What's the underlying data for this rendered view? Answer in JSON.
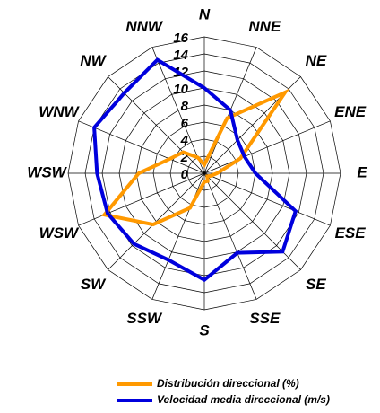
{
  "chart_data": {
    "type": "radar",
    "categories": [
      "N",
      "NNE",
      "NE",
      "ENE",
      "E",
      "ESE",
      "SE",
      "SSE",
      "S",
      "SSW",
      "SW",
      "WSW",
      "WSW",
      "WNW",
      "NW",
      "NNW"
    ],
    "series": [
      {
        "name": "Distribución direccional (%)",
        "color": "#ff9900",
        "values": [
          1,
          7,
          13.4,
          4.6,
          1.5,
          0.8,
          0.5,
          1,
          1,
          4.4,
          8.5,
          12.7,
          7.7,
          4.4,
          3.5,
          2
        ]
      },
      {
        "name": "Velocidad media direccional (m/s)",
        "color": "#0000dd",
        "values": [
          10,
          8,
          5.5,
          5.1,
          6,
          11.6,
          13,
          10.1,
          12.5,
          11,
          11.7,
          12.3,
          12.6,
          14,
          13.3,
          14.4
        ]
      }
    ],
    "ylim": [
      0,
      16
    ],
    "yticks": [
      0,
      2,
      4,
      6,
      8,
      10,
      12,
      14,
      16
    ],
    "grid": true,
    "legend": "bottom"
  }
}
